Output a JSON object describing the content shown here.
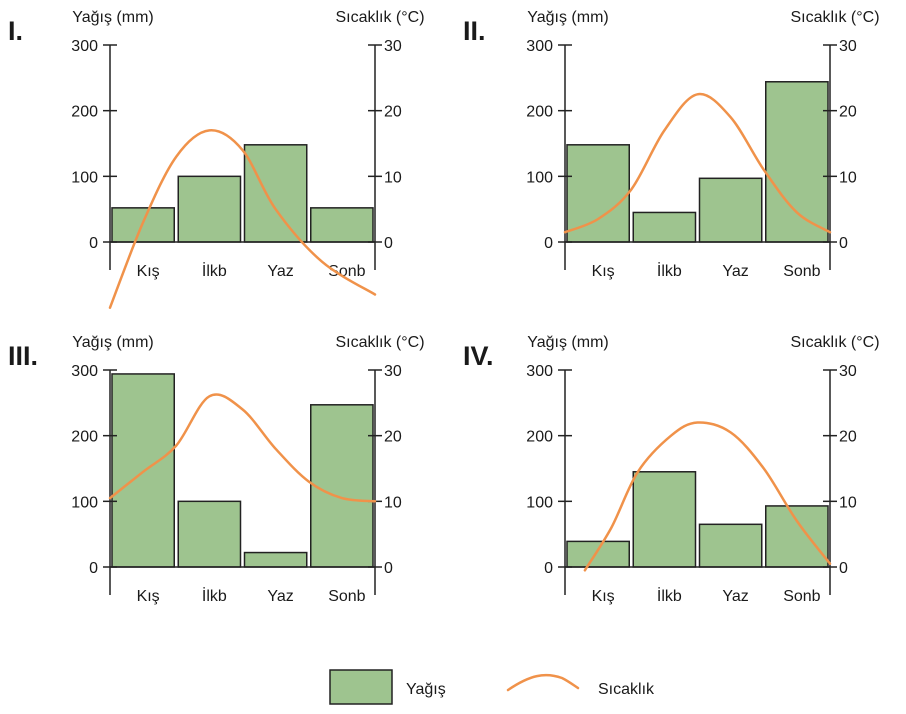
{
  "colors": {
    "bar_fill": "#9ec48f",
    "bar_stroke": "#222222",
    "line": "#f0924a",
    "axis": "#222222",
    "text": "#1a1a1a"
  },
  "legend": {
    "bar_label": "Yağış",
    "line_label": "Sıcaklık"
  },
  "chart_data": [
    {
      "type": "bar",
      "title": "I.",
      "ylabel_left": "Yağış (mm)",
      "ylabel_right": "Sıcaklık (°C)",
      "categories": [
        "Kış",
        "İlkb",
        "Yaz",
        "Sonb"
      ],
      "ylim_left": [
        0,
        300
      ],
      "ylim_right": [
        0,
        30
      ],
      "yticks_left": [
        "0",
        "100",
        "200",
        "300"
      ],
      "yticks_right": [
        "0",
        "10",
        "20",
        "30"
      ],
      "series": [
        {
          "name": "Yağış",
          "type": "bar",
          "axis": "left",
          "values": [
            52,
            100,
            148,
            52
          ]
        },
        {
          "name": "Sıcaklık",
          "type": "line",
          "axis": "right",
          "x": [
            0,
            0.5,
            1.0,
            1.5,
            2.0,
            2.5,
            3.2,
            4.0
          ],
          "values": [
            -10,
            3,
            13,
            17,
            14,
            5,
            -3,
            -8
          ]
        }
      ]
    },
    {
      "type": "bar",
      "title": "II.",
      "ylabel_left": "Yağış (mm)",
      "ylabel_right": "Sıcaklık (°C)",
      "categories": [
        "Kış",
        "İlkb",
        "Yaz",
        "Sonb"
      ],
      "ylim_left": [
        0,
        300
      ],
      "ylim_right": [
        0,
        30
      ],
      "yticks_left": [
        "0",
        "100",
        "200",
        "300"
      ],
      "yticks_right": [
        "0",
        "10",
        "20",
        "30"
      ],
      "series": [
        {
          "name": "Yağış",
          "type": "bar",
          "axis": "left",
          "values": [
            148,
            45,
            97,
            244
          ]
        },
        {
          "name": "Sıcaklık",
          "type": "line",
          "axis": "right",
          "x": [
            0,
            0.5,
            1.0,
            1.5,
            2.0,
            2.5,
            3.0,
            3.5,
            4.0
          ],
          "values": [
            1.5,
            3.5,
            8,
            17,
            22.5,
            19,
            11,
            4.5,
            1.5
          ]
        }
      ]
    },
    {
      "type": "bar",
      "title": "III.",
      "ylabel_left": "Yağış (mm)",
      "ylabel_right": "Sıcaklık (°C)",
      "categories": [
        "Kış",
        "İlkb",
        "Yaz",
        "Sonb"
      ],
      "ylim_left": [
        0,
        300
      ],
      "ylim_right": [
        0,
        30
      ],
      "yticks_left": [
        "0",
        "100",
        "200",
        "300"
      ],
      "yticks_right": [
        "0",
        "10",
        "20",
        "30"
      ],
      "series": [
        {
          "name": "Yağış",
          "type": "bar",
          "axis": "left",
          "values": [
            294,
            100,
            22,
            247
          ]
        },
        {
          "name": "Sıcaklık",
          "type": "line",
          "axis": "right",
          "x": [
            0,
            0.5,
            1.0,
            1.5,
            2.0,
            2.5,
            3.0,
            3.5,
            4.0
          ],
          "values": [
            10.5,
            14.5,
            18.5,
            26,
            24,
            18,
            13,
            10.5,
            10
          ]
        }
      ]
    },
    {
      "type": "bar",
      "title": "IV.",
      "ylabel_left": "Yağış (mm)",
      "ylabel_right": "Sıcaklık (°C)",
      "categories": [
        "Kış",
        "İlkb",
        "Yaz",
        "Sonb"
      ],
      "ylim_left": [
        0,
        300
      ],
      "ylim_right": [
        0,
        30
      ],
      "yticks_left": [
        "0",
        "100",
        "200",
        "300"
      ],
      "yticks_right": [
        "0",
        "10",
        "20",
        "30"
      ],
      "series": [
        {
          "name": "Yağış",
          "type": "bar",
          "axis": "left",
          "values": [
            39,
            145,
            65,
            93
          ]
        },
        {
          "name": "Sıcaklık",
          "type": "line",
          "axis": "right",
          "x": [
            0.3,
            0.7,
            1.1,
            1.6,
            2.0,
            2.5,
            3.0,
            3.5,
            4.0
          ],
          "values": [
            -0.5,
            6,
            14.5,
            20,
            22,
            20.5,
            15,
            7,
            0.5
          ]
        }
      ]
    }
  ]
}
